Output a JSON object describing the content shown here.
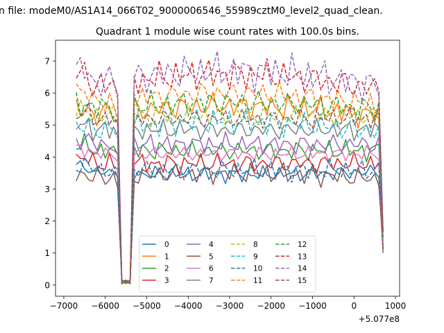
{
  "figure": {
    "suptitle": "n file: modeM0/AS1A14_066T02_9000006546_55989cztM0_level2_quad_clean.",
    "title": "Quadrant 1 module wise count rates with 100.0s bins.",
    "x_offset_label": "+5.077e8"
  },
  "chart_data": {
    "type": "line",
    "title": "Quadrant 1 module wise count rates with 100.0s bins.",
    "xlabel": "",
    "ylabel": "",
    "x_offset": 507700000,
    "xlim": [
      -7200,
      1100
    ],
    "ylim": [
      -0.35,
      7.65
    ],
    "xticks": [
      -7000,
      -6000,
      -5000,
      -4000,
      -3000,
      -2000,
      -1000,
      0,
      1000
    ],
    "xtick_labels": [
      "−7000",
      "−6000",
      "−5000",
      "−4000",
      "−3000",
      "−2000",
      "−1000",
      "0",
      "1000"
    ],
    "yticks": [
      0,
      1,
      2,
      3,
      4,
      5,
      6,
      7
    ],
    "ytick_labels": [
      "0",
      "1",
      "2",
      "3",
      "4",
      "5",
      "6",
      "7"
    ],
    "grid": false,
    "legend_position": "lower-center",
    "legend_columns": 4,
    "x_start": -6700,
    "x_step": 100,
    "n_points": 75,
    "gap_start": -5600,
    "gap_end": -5400,
    "series": [
      {
        "name": "0",
        "color": "#1f77b4",
        "linestyle": "solid",
        "level": 3.55,
        "drift": -0.1,
        "amp": 0.15
      },
      {
        "name": "1",
        "color": "#ff7f0e",
        "linestyle": "solid",
        "level": 5.3,
        "drift": 0.3,
        "amp": 0.25
      },
      {
        "name": "2",
        "color": "#2ca02c",
        "linestyle": "solid",
        "level": 4.2,
        "drift": 0.0,
        "amp": 0.2
      },
      {
        "name": "3",
        "color": "#d62728",
        "linestyle": "solid",
        "level": 3.8,
        "drift": 0.0,
        "amp": 0.2
      },
      {
        "name": "4",
        "color": "#9467bd",
        "linestyle": "solid",
        "level": 4.4,
        "drift": 0.0,
        "amp": 0.2
      },
      {
        "name": "5",
        "color": "#8c564b",
        "linestyle": "solid",
        "level": 3.3,
        "drift": 0.2,
        "amp": 0.2
      },
      {
        "name": "6",
        "color": "#e377c2",
        "linestyle": "solid",
        "level": 4.1,
        "drift": 0.0,
        "amp": 0.15
      },
      {
        "name": "7",
        "color": "#7f7f7f",
        "linestyle": "solid",
        "level": 4.85,
        "drift": 0.0,
        "amp": 0.2
      },
      {
        "name": "8",
        "color": "#bcbd22",
        "linestyle": "dashed",
        "level": 5.3,
        "drift": 0.0,
        "amp": 0.2
      },
      {
        "name": "9",
        "color": "#17becf",
        "linestyle": "dashed",
        "level": 4.8,
        "drift": 0.3,
        "amp": 0.25
      },
      {
        "name": "10",
        "color": "#1f77b4",
        "linestyle": "dashed",
        "level": 3.6,
        "drift": 0.0,
        "amp": 0.2
      },
      {
        "name": "11",
        "color": "#ff7f0e",
        "linestyle": "dashed",
        "level": 5.6,
        "drift": 0.4,
        "amp": 0.25
      },
      {
        "name": "12",
        "color": "#2ca02c",
        "linestyle": "dashed",
        "level": 5.5,
        "drift": 0.2,
        "amp": 0.25
      },
      {
        "name": "13",
        "color": "#d62728",
        "linestyle": "dashed",
        "level": 6.1,
        "drift": 0.5,
        "amp": 0.3
      },
      {
        "name": "14",
        "color": "#9467bd",
        "linestyle": "dashed",
        "level": 6.2,
        "drift": 0.5,
        "amp": 0.35
      },
      {
        "name": "15",
        "color": "#8c564b",
        "linestyle": "dashed",
        "level": 5.2,
        "drift": 0.0,
        "amp": 0.2
      }
    ]
  }
}
